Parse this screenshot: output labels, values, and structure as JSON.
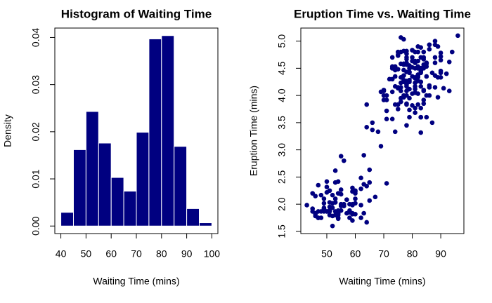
{
  "chart_data": [
    {
      "type": "histogram",
      "title": "Histogram of Waiting Time",
      "xlabel": "Waiting Time (mins)",
      "ylabel": "Density",
      "color": "#000080",
      "bins": [
        40,
        45,
        50,
        55,
        60,
        65,
        70,
        75,
        80,
        85,
        90,
        95,
        100
      ],
      "values": [
        0.0029,
        0.0162,
        0.0243,
        0.0176,
        0.0103,
        0.0074,
        0.0199,
        0.0397,
        0.0404,
        0.0169,
        0.0037,
        0.0007
      ],
      "xlim": [
        37.6,
        102.4
      ],
      "xticks": [
        40,
        50,
        60,
        70,
        80,
        90,
        100
      ],
      "ylim": [
        -0.0016,
        0.042
      ],
      "yticks": [
        {
          "value": 0,
          "label": "0.00"
        },
        {
          "value": 0.01,
          "label": "0.01"
        },
        {
          "value": 0.02,
          "label": "0.02"
        },
        {
          "value": 0.03,
          "label": "0.03"
        },
        {
          "value": 0.04,
          "label": "0.04"
        }
      ]
    },
    {
      "type": "scatter",
      "title": "Eruption Time vs. Waiting Time",
      "xlabel": "Waiting Time (mins)",
      "ylabel": "Eruption Time (mins)",
      "color": "#000080",
      "x": [
        79,
        54,
        74,
        62,
        85,
        55,
        88,
        85,
        51,
        85,
        54,
        84,
        78,
        47,
        83,
        52,
        62,
        84,
        52,
        79,
        51,
        47,
        78,
        69,
        74,
        83,
        55,
        76,
        78,
        79,
        73,
        77,
        66,
        80,
        74,
        52,
        48,
        80,
        59,
        90,
        80,
        58,
        84,
        58,
        73,
        83,
        64,
        53,
        82,
        59,
        75,
        90,
        54,
        80,
        54,
        83,
        71,
        64,
        77,
        81,
        59,
        84,
        48,
        82,
        60,
        92,
        78,
        78,
        65,
        73,
        82,
        56,
        79,
        71,
        62,
        76,
        60,
        78,
        76,
        83,
        75,
        82,
        70,
        65,
        73,
        88,
        76,
        80,
        48,
        86,
        60,
        90,
        50,
        78,
        63,
        72,
        84,
        75,
        51,
        82,
        62,
        88,
        49,
        83,
        81,
        47,
        84,
        52,
        86,
        81,
        75,
        59,
        89,
        79,
        59,
        81,
        50,
        85,
        59,
        87,
        53,
        69,
        77,
        56,
        88,
        81,
        45,
        82,
        55,
        90,
        45,
        83,
        56,
        89,
        46,
        82,
        51,
        86,
        53,
        79,
        81,
        60,
        82,
        77,
        76,
        59,
        80,
        49,
        96,
        53,
        77,
        77,
        65,
        81,
        71,
        70,
        81,
        93,
        53,
        89,
        45,
        86,
        58,
        78,
        66,
        76,
        63,
        88,
        52,
        93,
        49,
        57,
        77,
        68,
        81,
        81,
        73,
        50,
        85,
        74,
        55,
        77,
        83,
        83,
        51,
        78,
        84,
        46,
        83,
        55,
        81,
        57,
        76,
        84,
        77,
        81,
        87,
        77,
        51,
        78,
        60,
        82,
        91,
        53,
        78,
        46,
        77,
        84,
        49,
        83,
        71,
        80,
        49,
        75,
        64,
        76,
        53,
        94,
        55,
        76,
        50,
        82,
        54,
        75,
        78,
        79,
        78,
        78,
        70,
        79,
        70,
        54,
        86,
        50,
        90,
        54,
        54,
        77,
        79,
        64,
        75,
        47,
        86,
        63,
        85,
        82,
        57,
        82,
        67,
        74,
        54,
        83,
        73,
        73,
        88,
        80,
        71,
        83,
        56,
        79,
        78,
        84,
        58,
        83,
        43,
        60,
        75,
        81,
        46,
        90,
        46,
        74
      ],
      "y": [
        3.6,
        1.8,
        3.333,
        2.283,
        4.533,
        2.883,
        4.7,
        3.6,
        1.95,
        4.35,
        1.833,
        3.917,
        4.2,
        1.75,
        4.7,
        2.167,
        1.75,
        4.8,
        1.6,
        4.25,
        1.8,
        1.75,
        3.45,
        3.067,
        4.533,
        3.6,
        1.967,
        4.083,
        3.85,
        4.433,
        4.3,
        4.467,
        3.367,
        4.033,
        3.833,
        2.017,
        1.867,
        4.833,
        1.833,
        4.783,
        4.35,
        1.883,
        4.567,
        1.75,
        4.533,
        3.317,
        3.833,
        2.1,
        4.633,
        2,
        4.8,
        4.716,
        1.833,
        4.833,
        1.733,
        4.883,
        3.717,
        1.667,
        4.567,
        4.317,
        2.233,
        4.5,
        1.75,
        4.8,
        1.817,
        4.4,
        4.167,
        4.7,
        2.067,
        4.7,
        4.033,
        1.967,
        4.5,
        4,
        1.983,
        5.067,
        2.017,
        4.567,
        3.883,
        3.6,
        4.133,
        4.333,
        4.1,
        2.633,
        4.067,
        4.933,
        3.95,
        4.517,
        2.167,
        4,
        2.2,
        4.333,
        1.867,
        4.817,
        1.833,
        4.3,
        4.667,
        3.75,
        1.867,
        4.9,
        2.483,
        4.367,
        2.1,
        4.5,
        4.05,
        1.867,
        4.7,
        1.783,
        4.85,
        3.683,
        4.733,
        2.3,
        4.9,
        4.417,
        1.7,
        4.633,
        2.317,
        4.6,
        1.817,
        4.417,
        2.617,
        4.067,
        4.25,
        1.967,
        4.6,
        3.767,
        1.917,
        4.5,
        2.267,
        4.65,
        1.867,
        4.167,
        2.8,
        4.333,
        1.833,
        4.383,
        1.883,
        4.933,
        2.033,
        3.733,
        4.233,
        2.233,
        4.533,
        4.817,
        4.333,
        1.983,
        4.633,
        2.017,
        5.1,
        1.8,
        5.033,
        4,
        2.4,
        4.6,
        3.567,
        4,
        4.5,
        4.083,
        1.8,
        3.967,
        2.2,
        4.15,
        2,
        3.833,
        3.5,
        4.583,
        2.367,
        5,
        1.933,
        4.617,
        1.917,
        2.083,
        4.583,
        3.333,
        4.167,
        4.333,
        4.5,
        2.417,
        4,
        4.167,
        1.883,
        4.583,
        4.25,
        3.767,
        2.033,
        4.433,
        4.083,
        1.833,
        4.417,
        2.183,
        4.8,
        1.833,
        4.8,
        4.1,
        3.966,
        4.233,
        3.5,
        4.366,
        2.25,
        4.667,
        2.1,
        4.35,
        4.133,
        1.867,
        4.6,
        1.783,
        4.367,
        3.85,
        1.933,
        4.5,
        2.383,
        4.7,
        1.867,
        3.833,
        3.417,
        4.233,
        2.4,
        4.8,
        2,
        4.15,
        1.867,
        4.267,
        1.75,
        4.483,
        4,
        4.117,
        4.083,
        4.267,
        3.917,
        4.55,
        4.083,
        2.417,
        4.183,
        2.217,
        4.45,
        1.883,
        1.85,
        4.283,
        3.95,
        2.333,
        4.15,
        2.35,
        4.933,
        2.9,
        4.583,
        3.833,
        2.083,
        4.367,
        2.133,
        4.35,
        2.2,
        4.45,
        3.567,
        4.5,
        4.15,
        3.817,
        3.917,
        4.45,
        2,
        4.283,
        4.767,
        4.533,
        1.85,
        4.25,
        1.983,
        2.25,
        4.75,
        4.117,
        2.15,
        4.417,
        1.817,
        4.467
      ],
      "xlim": [
        40.88,
        98.12
      ],
      "xticks": [
        50,
        60,
        70,
        80,
        90
      ],
      "ylim": [
        1.46,
        5.24
      ],
      "yticks": [
        1.5,
        {
          "value": 2,
          "label": "2.0"
        },
        2.5,
        {
          "value": 3,
          "label": "3.0"
        },
        3.5,
        {
          "value": 4,
          "label": "4.0"
        },
        4.5,
        {
          "value": 5,
          "label": "5.0"
        }
      ]
    }
  ]
}
